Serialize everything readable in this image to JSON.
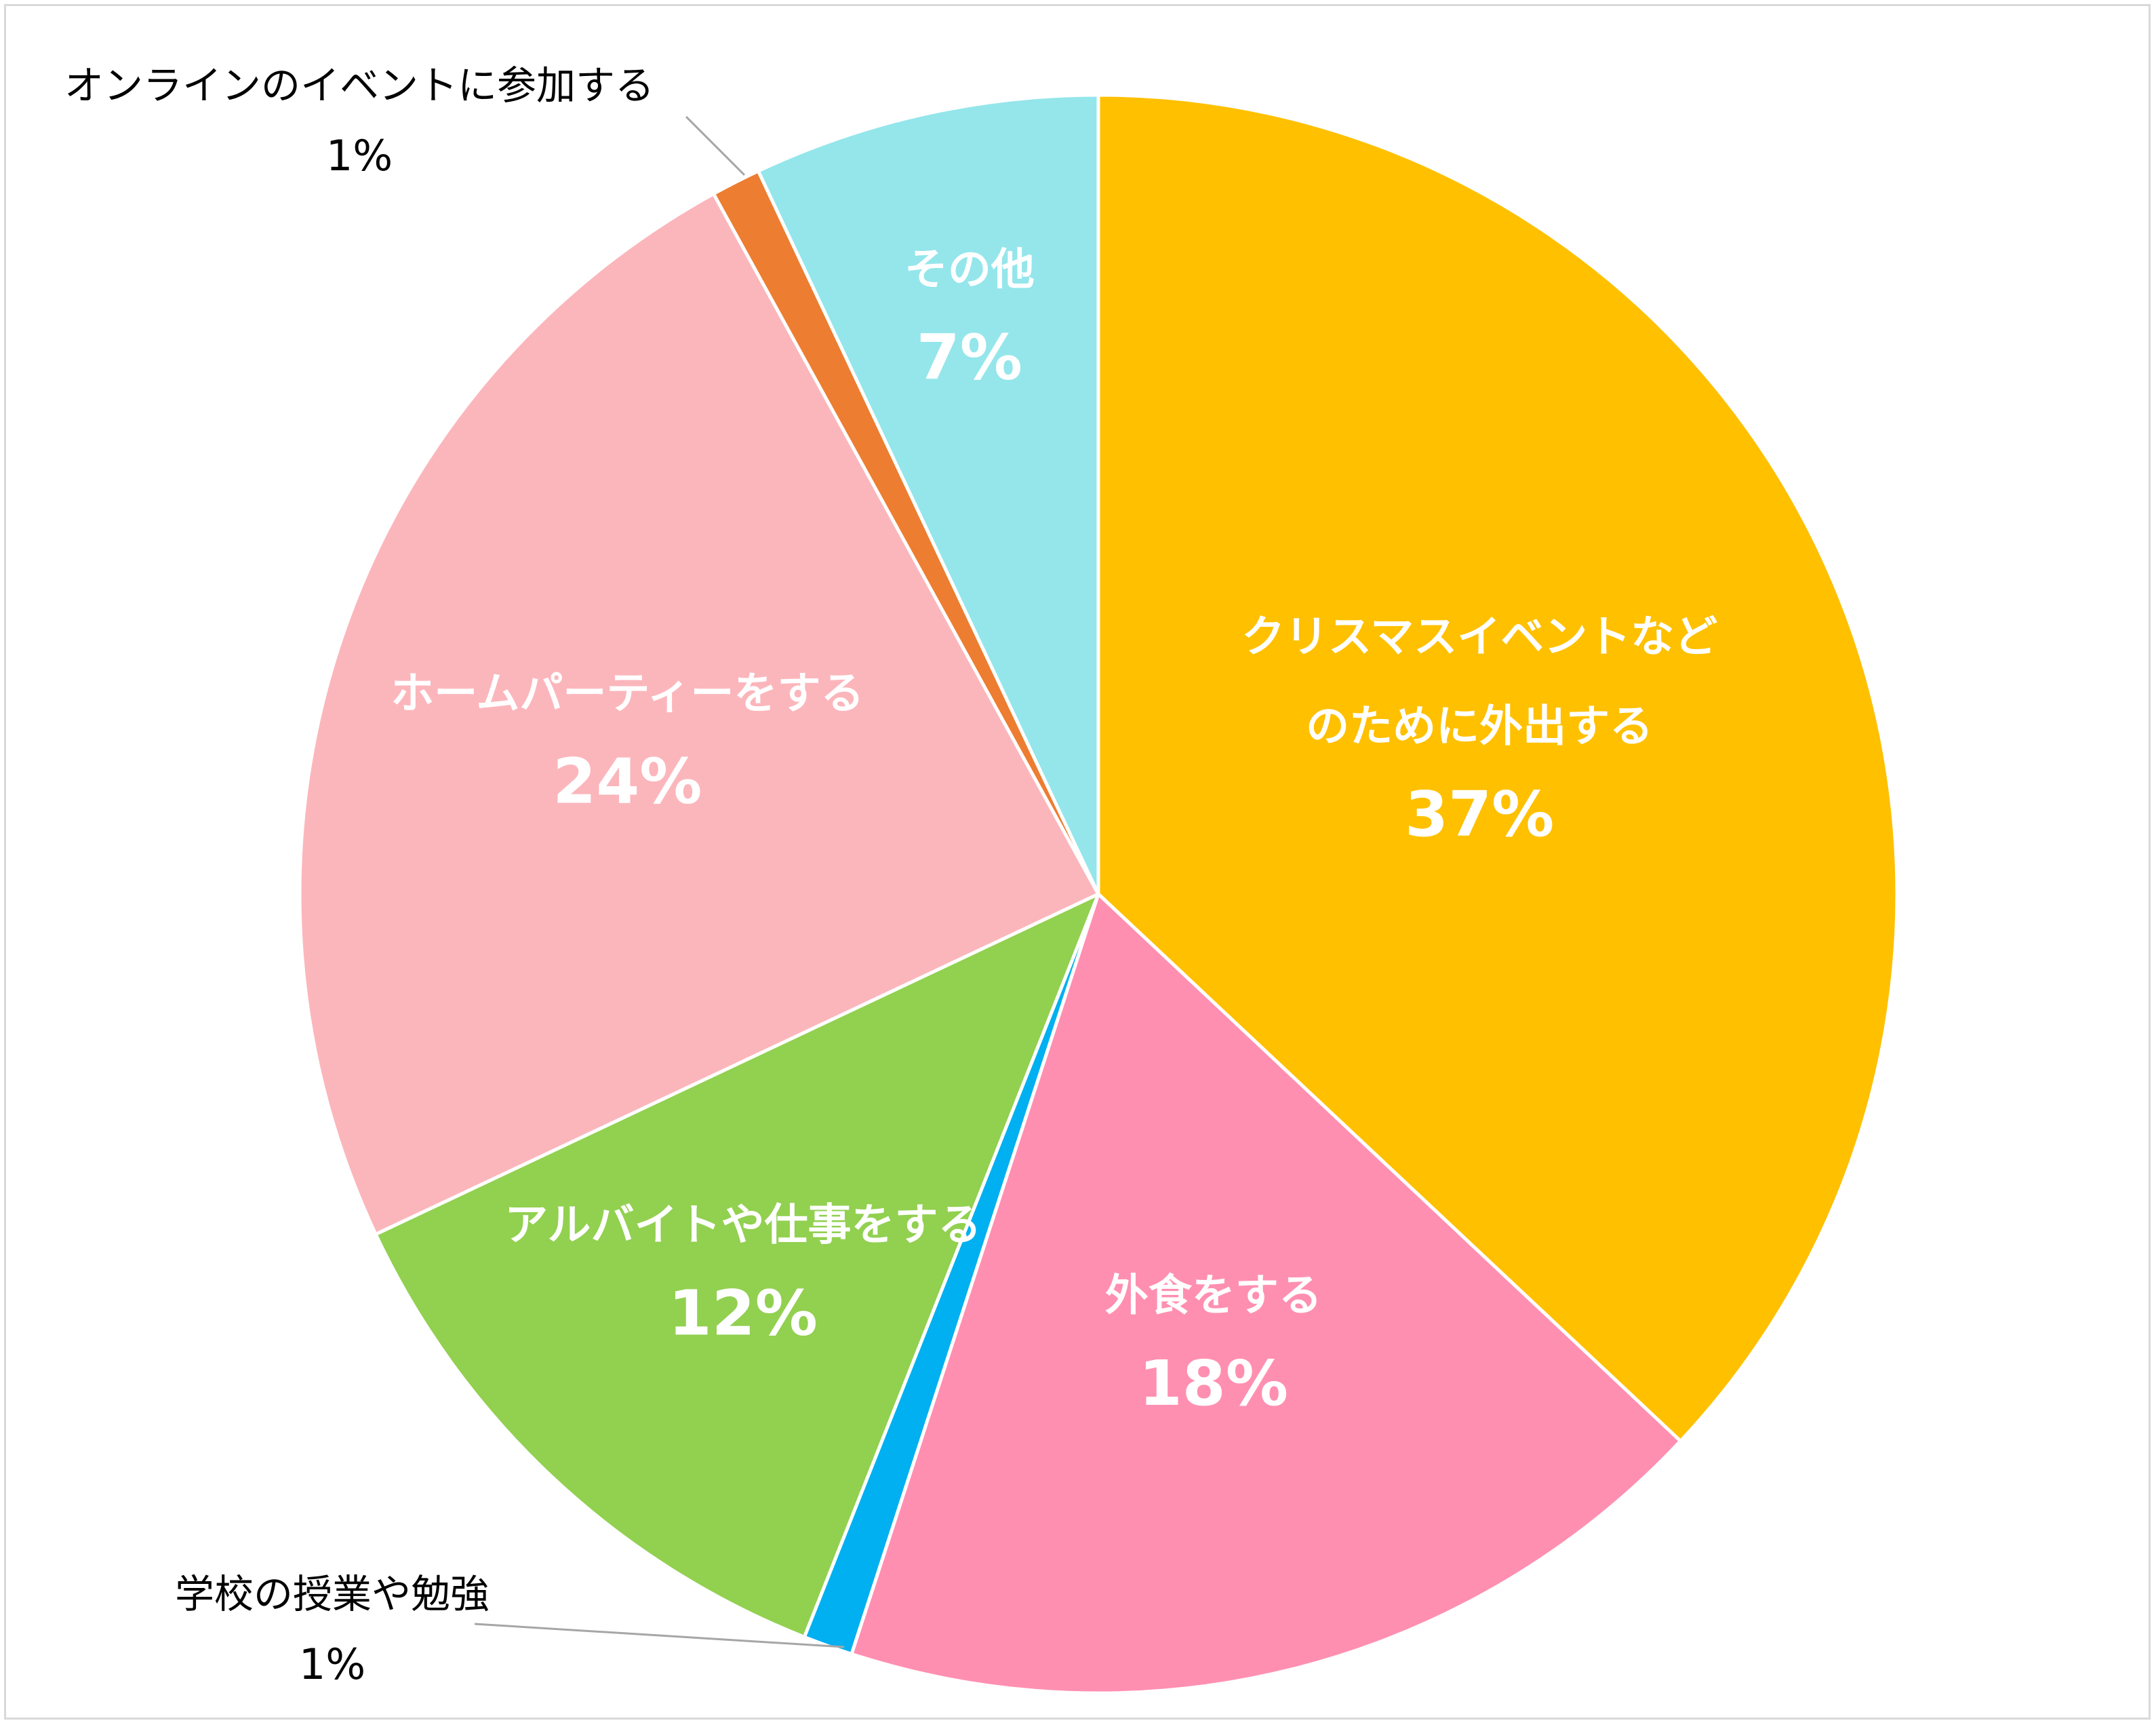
{
  "chart_data": {
    "type": "pie",
    "title": "",
    "start_angle_deg": 0,
    "direction": "clockwise",
    "slices": [
      {
        "label": "クリスマスイベントなどのために外出する",
        "label_lines": [
          "クリスマスイベントなど",
          "のために外出する"
        ],
        "value": 37,
        "pct_label": "37%",
        "color": "#FFC000",
        "label_placement": "inside"
      },
      {
        "label": "外食をする",
        "label_lines": [
          "外食をする"
        ],
        "value": 18,
        "pct_label": "18%",
        "color": "#FF8FB1",
        "label_placement": "inside"
      },
      {
        "label": "学校の授業や勉強",
        "label_lines": [
          "学校の授業や勉強"
        ],
        "value": 1,
        "pct_label": "1%",
        "color": "#00B0F0",
        "label_placement": "outside"
      },
      {
        "label": "アルバイトや仕事をする",
        "label_lines": [
          "アルバイトや仕事をする"
        ],
        "value": 12,
        "pct_label": "12%",
        "color": "#92D050",
        "label_placement": "inside"
      },
      {
        "label": "ホームパーティーをする",
        "label_lines": [
          "ホームパーティーをする"
        ],
        "value": 24,
        "pct_label": "24%",
        "color": "#FBB6BC",
        "label_placement": "inside"
      },
      {
        "label": "オンラインのイベントに参加する",
        "label_lines": [
          "オンラインのイベントに参加する"
        ],
        "value": 1,
        "pct_label": "1%",
        "color": "#ED7D31",
        "label_placement": "outside"
      },
      {
        "label": "その他",
        "label_lines": [
          "その他"
        ],
        "value": 7,
        "pct_label": "7%",
        "color": "#94E6EB",
        "label_placement": "inside"
      }
    ]
  }
}
